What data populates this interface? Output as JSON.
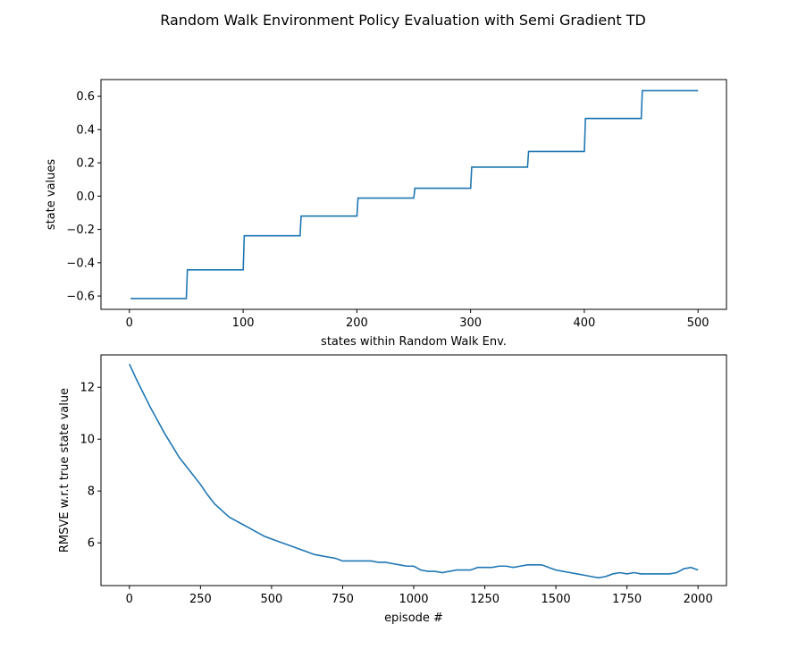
{
  "figure": {
    "suptitle": "Random Walk Environment Policy Evaluation with Semi Gradient TD"
  },
  "chart_data": [
    {
      "type": "line",
      "title": "",
      "xlabel": "states within Random Walk Env.",
      "ylabel": "state values",
      "xlim": [
        -25,
        525
      ],
      "ylim": [
        -0.68,
        0.7
      ],
      "xticks": [
        0,
        100,
        200,
        300,
        400,
        500
      ],
      "xtick_labels": [
        "0",
        "100",
        "200",
        "300",
        "400",
        "500"
      ],
      "yticks": [
        -0.6,
        -0.4,
        -0.2,
        0.0,
        0.2,
        0.4,
        0.6
      ],
      "ytick_labels": [
        "−0.6",
        "−0.4",
        "−0.2",
        "0.0",
        "0.2",
        "0.4",
        "0.6"
      ],
      "grid": false,
      "color": "#1f77b4",
      "series": [
        {
          "step": true,
          "x": [
            1,
            51,
            101,
            151,
            201,
            251,
            301,
            351,
            401,
            451
          ],
          "values": [
            -0.615,
            -0.443,
            -0.238,
            -0.12,
            -0.012,
            0.047,
            0.174,
            0.268,
            0.466,
            0.633
          ],
          "x_end": 500
        }
      ]
    },
    {
      "type": "line",
      "title": "",
      "xlabel": "episode #",
      "ylabel": "RMSVE w.r.t true state value",
      "xlim": [
        -100,
        2100
      ],
      "ylim": [
        4.35,
        13.25
      ],
      "xticks": [
        0,
        250,
        500,
        750,
        1000,
        1250,
        1500,
        1750,
        2000
      ],
      "xtick_labels": [
        "0",
        "250",
        "500",
        "750",
        "1000",
        "1250",
        "1500",
        "1750",
        "2000"
      ],
      "yticks": [
        6,
        8,
        10,
        12
      ],
      "ytick_labels": [
        "6",
        "8",
        "10",
        "12"
      ],
      "grid": false,
      "color": "#1f77b4",
      "series": [
        {
          "x": [
            0,
            25,
            50,
            75,
            100,
            125,
            150,
            175,
            200,
            225,
            250,
            275,
            300,
            325,
            350,
            375,
            400,
            425,
            450,
            475,
            500,
            525,
            550,
            575,
            600,
            625,
            650,
            675,
            700,
            725,
            750,
            775,
            800,
            825,
            850,
            875,
            900,
            925,
            950,
            975,
            1000,
            1025,
            1050,
            1075,
            1100,
            1125,
            1150,
            1175,
            1200,
            1225,
            1250,
            1275,
            1300,
            1325,
            1350,
            1375,
            1400,
            1425,
            1450,
            1475,
            1500,
            1525,
            1550,
            1575,
            1600,
            1625,
            1650,
            1675,
            1700,
            1725,
            1750,
            1775,
            1800,
            1825,
            1850,
            1875,
            1900,
            1925,
            1950,
            1975,
            2000
          ],
          "values": [
            12.9,
            12.3,
            11.75,
            11.2,
            10.7,
            10.2,
            9.75,
            9.3,
            8.95,
            8.6,
            8.25,
            7.85,
            7.5,
            7.25,
            7.0,
            6.85,
            6.7,
            6.55,
            6.4,
            6.25,
            6.15,
            6.05,
            5.95,
            5.85,
            5.75,
            5.65,
            5.55,
            5.5,
            5.45,
            5.4,
            5.3,
            5.3,
            5.3,
            5.3,
            5.3,
            5.25,
            5.25,
            5.2,
            5.15,
            5.1,
            5.1,
            4.95,
            4.9,
            4.9,
            4.85,
            4.9,
            4.95,
            4.95,
            4.95,
            5.05,
            5.05,
            5.05,
            5.1,
            5.1,
            5.05,
            5.1,
            5.15,
            5.15,
            5.15,
            5.05,
            4.95,
            4.9,
            4.85,
            4.8,
            4.75,
            4.7,
            4.65,
            4.7,
            4.8,
            4.85,
            4.8,
            4.85,
            4.8,
            4.8,
            4.8,
            4.8,
            4.8,
            4.85,
            5.0,
            5.05,
            4.95
          ]
        }
      ]
    }
  ]
}
